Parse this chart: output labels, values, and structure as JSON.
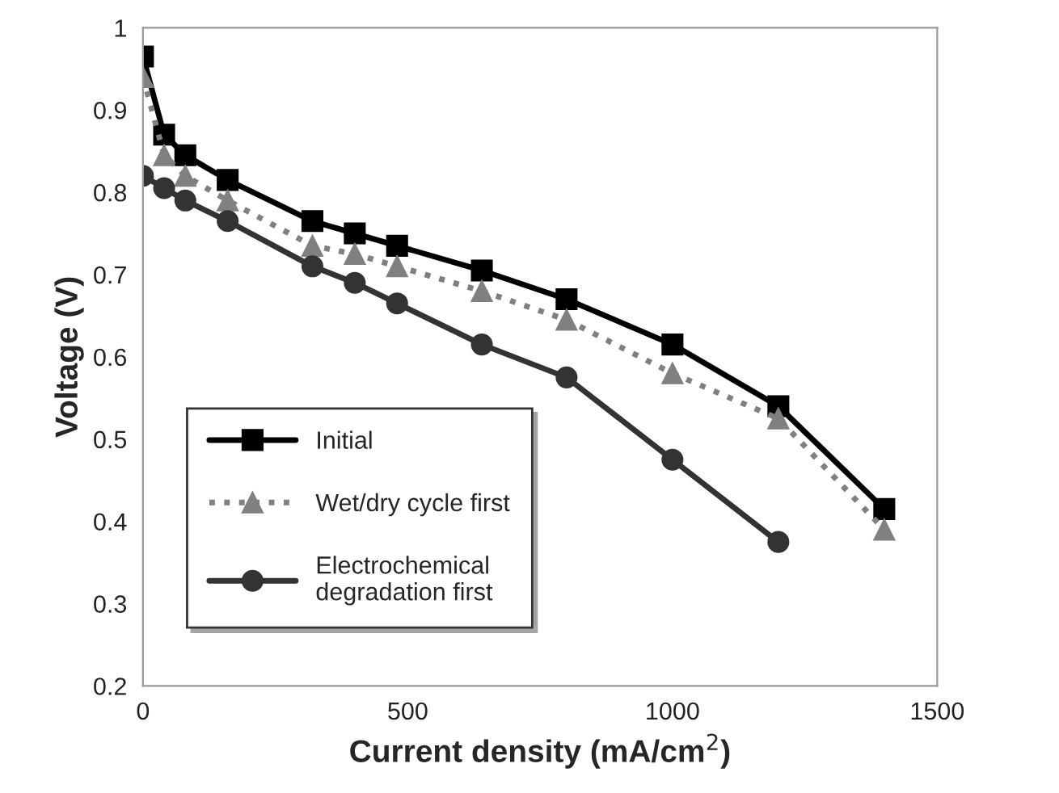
{
  "chart_data": {
    "type": "line",
    "xlabel": "Current density (mA/cm$^{2}$)",
    "ylabel": "Voltage (V)",
    "xlim": [
      0,
      1500
    ],
    "xticks": [
      0,
      500,
      1000,
      1500
    ],
    "ylim": [
      0.2,
      1
    ],
    "yticks": [
      0.2,
      0.3,
      0.4,
      0.5,
      0.6,
      0.7,
      0.8,
      0.9,
      1
    ],
    "grid": false,
    "legend": "bottom left",
    "series": [
      {
        "name": "Initial",
        "color": "#000000",
        "marker": "square",
        "line_style": "solid",
        "x": [
          0,
          40,
          80,
          160,
          320,
          400,
          480,
          640,
          800,
          1000,
          1200,
          1400
        ],
        "values": [
          0.965,
          0.87,
          0.845,
          0.815,
          0.765,
          0.75,
          0.735,
          0.705,
          0.67,
          0.615,
          0.54,
          0.415
        ]
      },
      {
        "name": "Wet/dry cycle first",
        "color": "#808080",
        "marker": "triangle",
        "line_style": "dotted",
        "x": [
          0,
          40,
          80,
          160,
          320,
          400,
          480,
          640,
          800,
          1000,
          1200,
          1400
        ],
        "values": [
          0.94,
          0.845,
          0.82,
          0.79,
          0.735,
          0.725,
          0.71,
          0.68,
          0.645,
          0.58,
          0.525,
          0.39
        ]
      },
      {
        "name": "Electrochemical\ndegradation first",
        "color": "#333333",
        "marker": "circle",
        "line_style": "solid",
        "x": [
          0,
          40,
          80,
          160,
          320,
          400,
          480,
          640,
          800,
          1000,
          1200
        ],
        "values": [
          0.82,
          0.805,
          0.79,
          0.765,
          0.71,
          0.69,
          0.665,
          0.615,
          0.575,
          0.475,
          0.375
        ]
      }
    ]
  }
}
